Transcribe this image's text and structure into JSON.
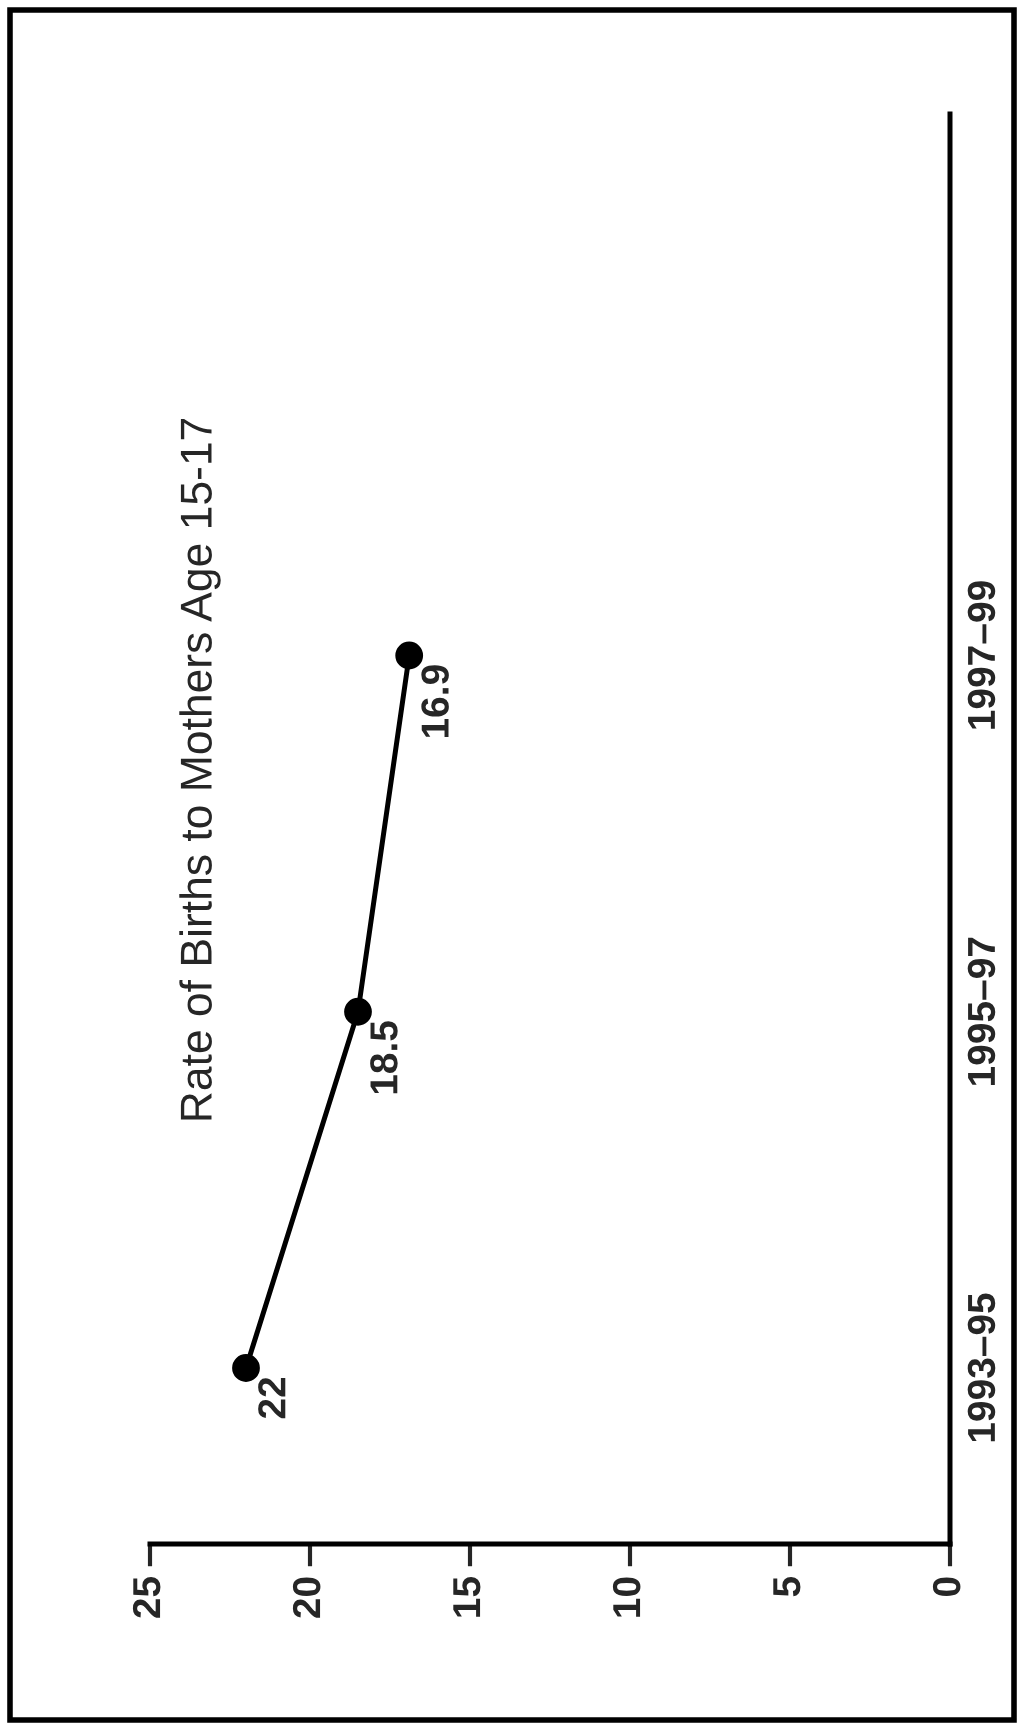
{
  "chart_data": {
    "type": "line",
    "title": "Rate of Births to Mothers Age 15-17",
    "orientation": "horizontal",
    "categories": [
      "1997–99",
      "1995–97",
      "1993–95"
    ],
    "series": [
      {
        "color": "#000000",
        "values": [
          16.9,
          18.5,
          22
        ]
      }
    ],
    "xlim": [
      25,
      0
    ],
    "xticks": [
      0,
      5,
      10,
      15,
      20,
      25
    ],
    "data_labels": true,
    "marker": "circle",
    "line_style": "solid"
  }
}
